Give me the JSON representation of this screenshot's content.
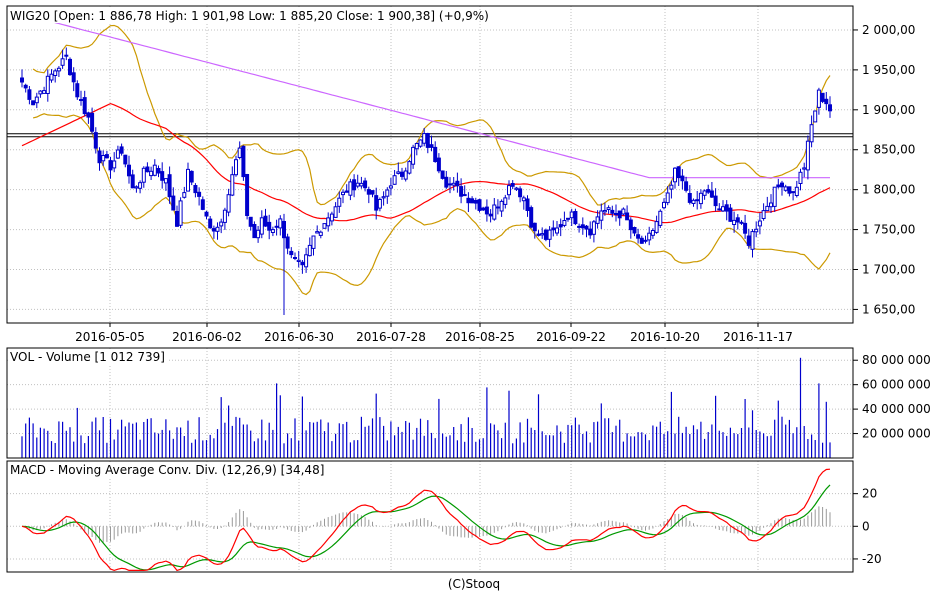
{
  "footer": "(C)Stooq",
  "colors": {
    "background": "#ffffff",
    "frame": "#000000",
    "grid": "#c0c0c0",
    "candle": "#0000cc",
    "ma_short": "#ff0000",
    "ma_long": "#cc66ff",
    "bollinger": "#cc9900",
    "volume": "#0000cc",
    "macd_line": "#ff0000",
    "signal_line": "#009900",
    "histogram": "#999999"
  },
  "chart_data": [
    {
      "type": "candlestick",
      "title": "WIG20 [Open: 1 886,78  High: 1 901,98  Low: 1 885,20  Close: 1 900,38] (+0,9%)",
      "x_ticks": [
        "2016-05-05",
        "2016-06-02",
        "2016-06-30",
        "2016-07-28",
        "2016-08-25",
        "2016-09-22",
        "2016-10-20",
        "2016-11-17"
      ],
      "y_ticks": [
        "2 000,00",
        "1 950,00",
        "1 900,00",
        "1 850,00",
        "1 800,00",
        "1 750,00",
        "1 700,00",
        "1 650,00"
      ],
      "ylim": [
        1633,
        2030
      ],
      "grid": true,
      "reference_line": 1870,
      "close_anchors": [
        [
          0,
          1935
        ],
        [
          3,
          1910
        ],
        [
          6,
          1930
        ],
        [
          9,
          1950
        ],
        [
          12,
          1965
        ],
        [
          15,
          1920
        ],
        [
          18,
          1890
        ],
        [
          21,
          1840
        ],
        [
          24,
          1830
        ],
        [
          27,
          1850
        ],
        [
          30,
          1800
        ],
        [
          33,
          1820
        ],
        [
          36,
          1830
        ],
        [
          39,
          1810
        ],
        [
          42,
          1760
        ],
        [
          45,
          1820
        ],
        [
          48,
          1790
        ],
        [
          51,
          1750
        ],
        [
          54,
          1760
        ],
        [
          57,
          1820
        ],
        [
          59,
          1850
        ],
        [
          61,
          1770
        ],
        [
          63,
          1740
        ],
        [
          65,
          1760
        ],
        [
          67,
          1750
        ],
        [
          70,
          1760
        ],
        [
          73,
          1715
        ],
        [
          76,
          1700
        ],
        [
          79,
          1740
        ],
        [
          82,
          1760
        ],
        [
          85,
          1780
        ],
        [
          88,
          1800
        ],
        [
          91,
          1810
        ],
        [
          94,
          1800
        ],
        [
          96,
          1775
        ],
        [
          98,
          1790
        ],
        [
          100,
          1810
        ],
        [
          103,
          1820
        ],
        [
          106,
          1850
        ],
        [
          109,
          1865
        ],
        [
          112,
          1840
        ],
        [
          115,
          1810
        ],
        [
          118,
          1800
        ],
        [
          121,
          1790
        ],
        [
          124,
          1780
        ],
        [
          127,
          1770
        ],
        [
          130,
          1790
        ],
        [
          133,
          1810
        ],
        [
          136,
          1790
        ],
        [
          139,
          1745
        ],
        [
          142,
          1740
        ],
        [
          145,
          1750
        ],
        [
          148,
          1770
        ],
        [
          151,
          1760
        ],
        [
          154,
          1750
        ],
        [
          157,
          1775
        ],
        [
          160,
          1770
        ],
        [
          163,
          1770
        ],
        [
          166,
          1740
        ],
        [
          169,
          1730
        ],
        [
          172,
          1760
        ],
        [
          175,
          1790
        ],
        [
          177,
          1820
        ],
        [
          180,
          1800
        ],
        [
          182,
          1780
        ],
        [
          185,
          1800
        ],
        [
          188,
          1780
        ],
        [
          191,
          1770
        ],
        [
          194,
          1760
        ],
        [
          197,
          1735
        ],
        [
          200,
          1765
        ],
        [
          203,
          1790
        ],
        [
          206,
          1810
        ],
        [
          209,
          1795
        ],
        [
          212,
          1830
        ],
        [
          214,
          1880
        ],
        [
          216,
          1920
        ],
        [
          218,
          1910
        ],
        [
          219,
          1900
        ]
      ],
      "volume_bars": 220
    },
    {
      "type": "bar",
      "title": "VOL - Volume [1 012 739]",
      "y_ticks": [
        "80 000 000",
        "60 000 000",
        "40 000 000",
        "20 000 000"
      ],
      "ylim": [
        0,
        90000000
      ],
      "grid": true
    },
    {
      "type": "line",
      "title": "MACD - Moving Average Conv. Div. (12,26,9) [34,48]",
      "y_ticks": [
        "20",
        "0",
        "-20"
      ],
      "ylim": [
        -28,
        40
      ],
      "grid": true
    }
  ]
}
